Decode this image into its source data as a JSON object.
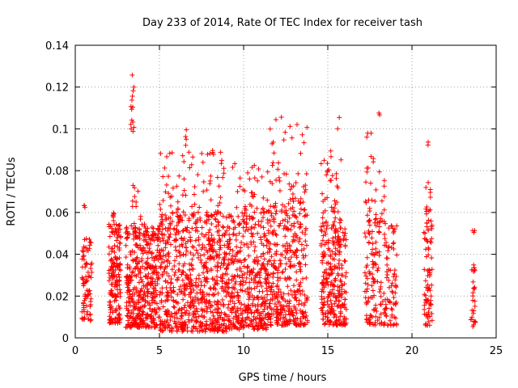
{
  "chart_data": {
    "type": "scatter",
    "title": "Day 233 of 2014, Rate Of TEC Index for receiver tash",
    "xlabel": "GPS time / hours",
    "ylabel": "ROTI / TECUs",
    "xlim": [
      0,
      25
    ],
    "ylim": [
      0,
      0.14
    ],
    "x_ticks": [
      0,
      5,
      10,
      15,
      20,
      25
    ],
    "y_ticks": [
      0,
      0.02,
      0.04,
      0.06,
      0.08,
      0.1,
      0.12,
      0.14
    ],
    "x_tick_labels": [
      "0",
      "5",
      "10",
      "15",
      "20",
      "25"
    ],
    "y_tick_labels": [
      "0",
      "0.02",
      "0.04",
      "0.06",
      "0.08",
      "0.1",
      "0.12",
      "0.14"
    ],
    "grid": true,
    "grid_style": "dotted",
    "marker": "+",
    "marker_color": "#ff0000",
    "clusters": [
      {
        "x": [
          0.4,
          1.0
        ],
        "y": [
          0.008,
          0.05
        ],
        "n": 80
      },
      {
        "x": [
          0.5,
          0.6
        ],
        "y": [
          0.062,
          0.064
        ],
        "n": 3
      },
      {
        "x": [
          2.0,
          2.7
        ],
        "y": [
          0.007,
          0.055
        ],
        "n": 170
      },
      {
        "x": [
          2.2,
          2.3
        ],
        "y": [
          0.055,
          0.066
        ],
        "n": 6
      },
      {
        "x": [
          3.0,
          5.0
        ],
        "y": [
          0.005,
          0.055
        ],
        "n": 430
      },
      {
        "x": [
          3.3,
          3.5
        ],
        "y": [
          0.098,
          0.128
        ],
        "n": 14
      },
      {
        "x": [
          3.4,
          3.9
        ],
        "y": [
          0.055,
          0.075
        ],
        "n": 10
      },
      {
        "x": [
          5.0,
          9.0
        ],
        "y": [
          0.003,
          0.06
        ],
        "n": 700
      },
      {
        "x": [
          5.0,
          9.0
        ],
        "y": [
          0.06,
          0.09
        ],
        "n": 70
      },
      {
        "x": [
          6.4,
          6.6
        ],
        "y": [
          0.09,
          0.102
        ],
        "n": 4
      },
      {
        "x": [
          9.0,
          11.5
        ],
        "y": [
          0.004,
          0.06
        ],
        "n": 430
      },
      {
        "x": [
          9.0,
          11.5
        ],
        "y": [
          0.06,
          0.085
        ],
        "n": 35
      },
      {
        "x": [
          11.5,
          13.8
        ],
        "y": [
          0.006,
          0.065
        ],
        "n": 360
      },
      {
        "x": [
          11.5,
          13.8
        ],
        "y": [
          0.065,
          0.108
        ],
        "n": 45
      },
      {
        "x": [
          14.6,
          16.1
        ],
        "y": [
          0.006,
          0.055
        ],
        "n": 270
      },
      {
        "x": [
          14.6,
          15.8
        ],
        "y": [
          0.055,
          0.09
        ],
        "n": 40
      },
      {
        "x": [
          15.5,
          15.7
        ],
        "y": [
          0.1,
          0.108
        ],
        "n": 2
      },
      {
        "x": [
          17.2,
          19.1
        ],
        "y": [
          0.006,
          0.055
        ],
        "n": 190
      },
      {
        "x": [
          17.2,
          18.4
        ],
        "y": [
          0.055,
          0.099
        ],
        "n": 40
      },
      {
        "x": [
          18.0,
          18.1
        ],
        "y": [
          0.106,
          0.109
        ],
        "n": 2
      },
      {
        "x": [
          20.7,
          21.2
        ],
        "y": [
          0.006,
          0.06
        ],
        "n": 80
      },
      {
        "x": [
          20.8,
          21.1
        ],
        "y": [
          0.06,
          0.076
        ],
        "n": 10
      },
      {
        "x": [
          20.9,
          21.0
        ],
        "y": [
          0.092,
          0.094
        ],
        "n": 2
      },
      {
        "x": [
          23.5,
          23.8
        ],
        "y": [
          0.004,
          0.036
        ],
        "n": 28
      },
      {
        "x": [
          23.6,
          23.8
        ],
        "y": [
          0.05,
          0.052
        ],
        "n": 3
      }
    ]
  }
}
